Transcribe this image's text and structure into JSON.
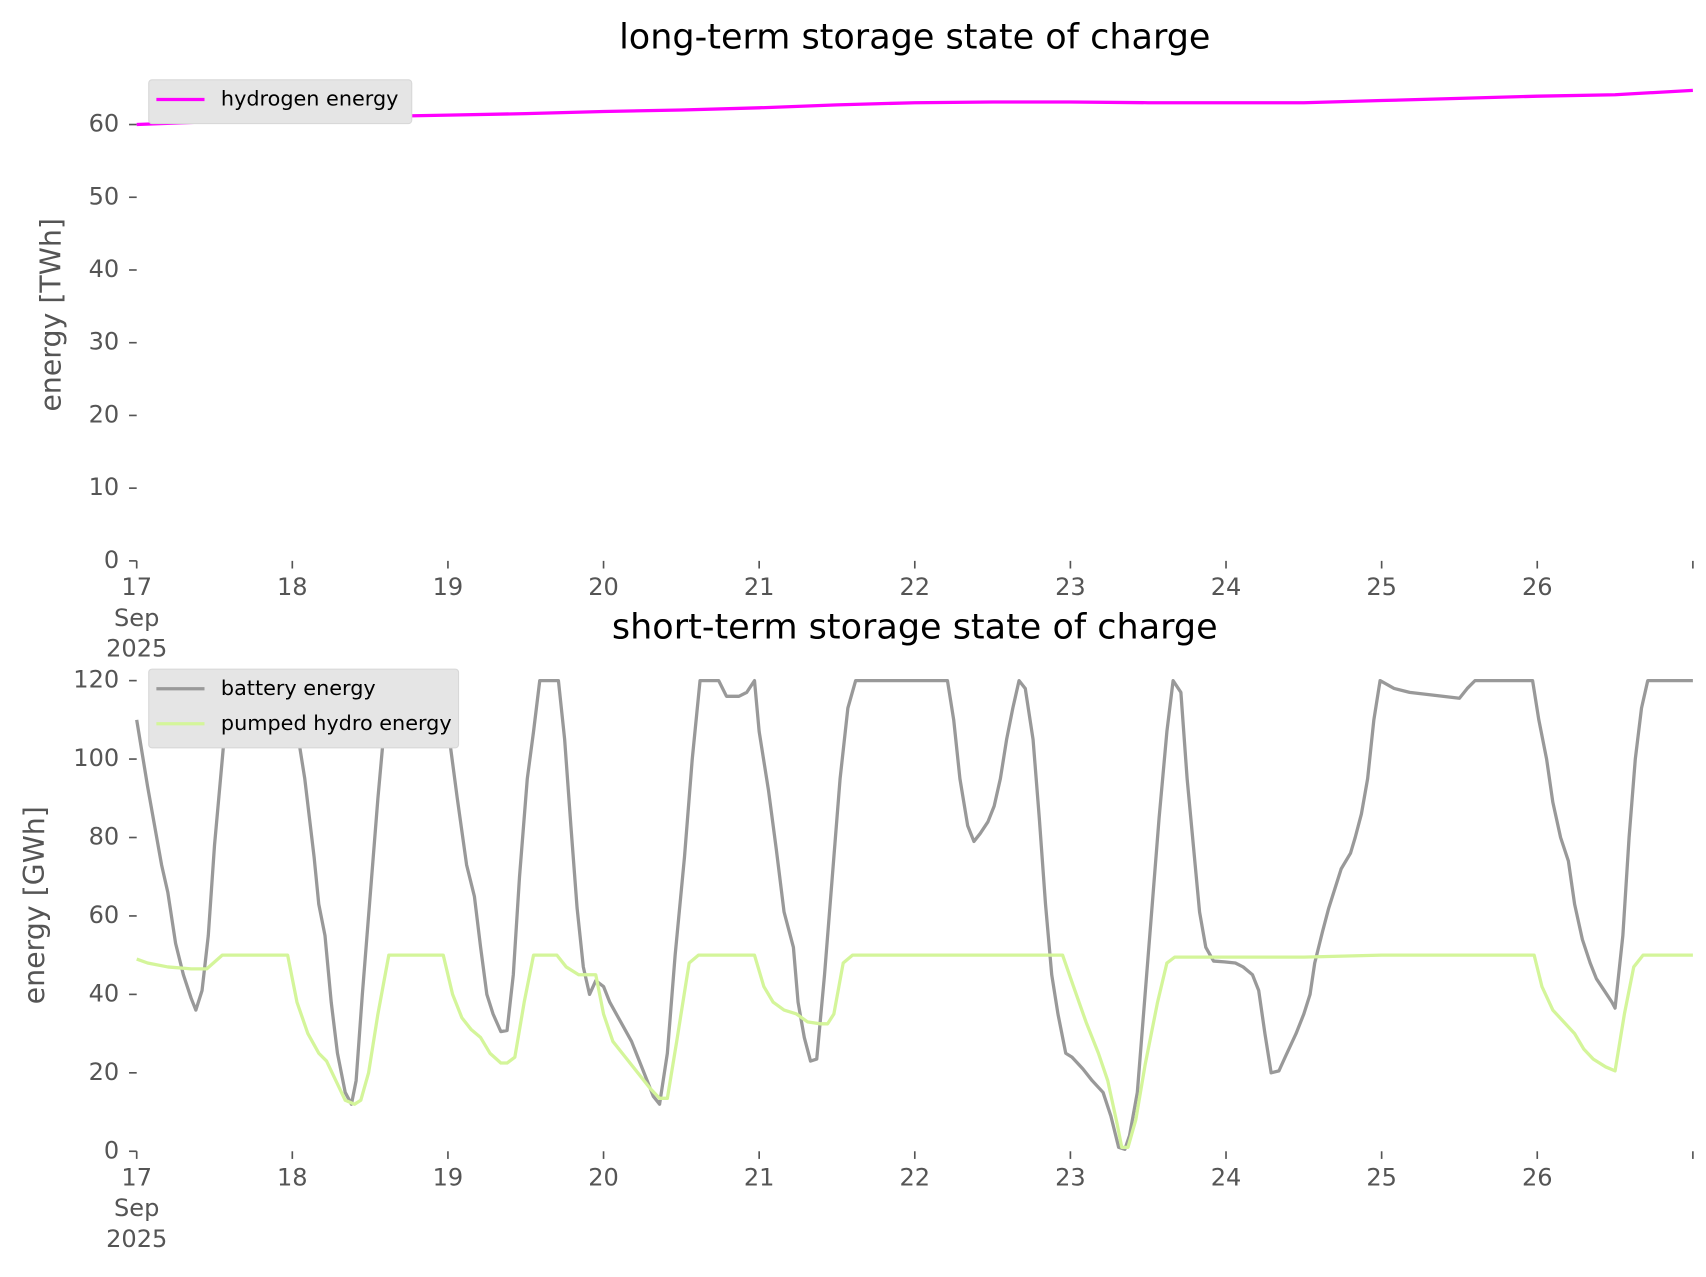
{
  "chart_data": [
    {
      "type": "line",
      "title": "long-term storage state of charge",
      "y_label": "energy [TWh]",
      "xlim": [
        17,
        27
      ],
      "xticks": [
        {
          "value": 17,
          "label": "17\nSep\n2025"
        },
        18,
        19,
        20,
        21,
        22,
        23,
        24,
        25,
        26
      ],
      "ylim": [
        0,
        66
      ],
      "yticks": [
        0,
        10,
        20,
        30,
        40,
        50,
        60
      ],
      "legend": "upper left",
      "series": [
        {
          "name": "hydrogen energy",
          "color": "#ff00ff",
          "x": [
            17,
            17.5,
            18,
            18.5,
            19,
            19.5,
            20,
            20.5,
            21,
            21.5,
            22,
            22.5,
            23,
            23.5,
            24,
            24.5,
            25,
            25.5,
            26,
            26.5,
            27
          ],
          "values": [
            60.0,
            60.4,
            60.8,
            61.1,
            61.3,
            61.5,
            61.8,
            62.0,
            62.3,
            62.7,
            63.0,
            63.1,
            63.1,
            63.0,
            63.0,
            63.0,
            63.3,
            63.6,
            63.9,
            64.1,
            64.7
          ]
        }
      ]
    },
    {
      "type": "line",
      "title": "short-term storage state of charge",
      "y_label": "energy [GWh]",
      "xlim": [
        17,
        27
      ],
      "xticks": [
        {
          "value": 17,
          "label": "17\nSep\n2025"
        },
        18,
        19,
        20,
        21,
        22,
        23,
        24,
        25,
        26
      ],
      "ylim": [
        0,
        126
      ],
      "yticks": [
        0,
        20,
        40,
        60,
        80,
        100,
        120
      ],
      "legend": "upper left",
      "series": [
        {
          "name": "battery energy",
          "color": "#999999",
          "x": [
            17,
            17.07,
            17.16,
            17.2,
            17.25,
            17.3,
            17.35,
            17.38,
            17.42,
            17.46,
            17.5,
            17.55,
            17.59,
            17.64,
            17.98,
            18.08,
            18.14,
            18.17,
            18.21,
            18.25,
            18.29,
            18.34,
            18.38,
            18.41,
            18.45,
            18.5,
            18.55,
            18.6,
            18.64,
            18.96,
            19.01,
            19.06,
            19.12,
            19.17,
            19.21,
            19.25,
            19.29,
            19.34,
            19.38,
            19.42,
            19.46,
            19.51,
            19.55,
            19.59,
            19.62,
            19.71,
            19.75,
            19.79,
            19.83,
            19.87,
            19.91,
            19.95,
            20,
            20.04,
            20.11,
            20.18,
            20.25,
            20.32,
            20.36,
            20.41,
            20.46,
            20.52,
            20.57,
            20.62,
            20.74,
            20.79,
            20.87,
            20.92,
            20.97,
            21,
            21.06,
            21.11,
            21.16,
            21.22,
            21.25,
            21.29,
            21.33,
            21.37,
            21.42,
            21.47,
            21.52,
            21.57,
            21.62,
            22.21,
            22.25,
            22.29,
            22.34,
            22.38,
            22.42,
            22.47,
            22.51,
            22.55,
            22.59,
            22.63,
            22.67,
            22.71,
            22.76,
            22.8,
            22.84,
            22.88,
            22.92,
            22.97,
            23.01,
            23.08,
            23.14,
            23.21,
            23.26,
            23.31,
            23.35,
            23.38,
            23.43,
            23.47,
            23.52,
            23.57,
            23.62,
            23.66,
            23.71,
            23.75,
            23.79,
            23.83,
            23.87,
            23.92,
            23.99,
            24.06,
            24.11,
            24.17,
            24.21,
            24.25,
            24.29,
            24.34,
            24.38,
            24.45,
            24.5,
            24.54,
            24.57,
            24.62,
            24.66,
            24.7,
            24.74,
            24.8,
            24.83,
            24.87,
            24.91,
            24.95,
            24.99,
            25.08,
            25.18,
            25.5,
            25.55,
            25.6,
            25.97,
            26.01,
            26.06,
            26.1,
            26.15,
            26.2,
            26.24,
            26.29,
            26.34,
            26.38,
            26.43,
            26.48,
            26.5,
            26.55,
            26.59,
            26.63,
            26.67,
            26.71,
            27
          ],
          "values": [
            110,
            93,
            73,
            66,
            53,
            45,
            39,
            36,
            41,
            55,
            78,
            100,
            118,
            120,
            120,
            95,
            75,
            63,
            55,
            38,
            25,
            15,
            12,
            18,
            40,
            65,
            90,
            112,
            120,
            120,
            105,
            90,
            73,
            65,
            52,
            40,
            35,
            30.5,
            30.8,
            45,
            70,
            95,
            107,
            120,
            120,
            120,
            105,
            83,
            62,
            47,
            40,
            43.5,
            42,
            38,
            33,
            28,
            21,
            14,
            12,
            25,
            50,
            75,
            100,
            120,
            120,
            116,
            116,
            117,
            120,
            107,
            92,
            77,
            61,
            52,
            38,
            29,
            23,
            23.5,
            45,
            70,
            95,
            113,
            120,
            120,
            110,
            95,
            83,
            79,
            81,
            84,
            88,
            95,
            105,
            113,
            120,
            118,
            105,
            85,
            63,
            45,
            35,
            25,
            24,
            21,
            18,
            15,
            9,
            1,
            0.5,
            4,
            15,
            35,
            60,
            85,
            107,
            120,
            117,
            95,
            78,
            61,
            52,
            48.5,
            48.3,
            48,
            47,
            45,
            41,
            30,
            20,
            20.5,
            24,
            30,
            35,
            40,
            48,
            56,
            62,
            67,
            72,
            76,
            80,
            86,
            95,
            110,
            120,
            118,
            117,
            115.5,
            118,
            120,
            120,
            110,
            100,
            89,
            80,
            74,
            63,
            54,
            48,
            44,
            41,
            38,
            36.5,
            55,
            80,
            100,
            113,
            120,
            120
          ]
        },
        {
          "name": "pumped hydro energy",
          "color": "#d4f59a",
          "x": [
            17,
            17.07,
            17.2,
            17.35,
            17.45,
            17.55,
            17.97,
            18.03,
            18.1,
            18.17,
            18.22,
            18.28,
            18.34,
            18.4,
            18.44,
            18.49,
            18.55,
            18.62,
            18.97,
            19.03,
            19.09,
            19.15,
            19.21,
            19.27,
            19.34,
            19.38,
            19.43,
            19.49,
            19.55,
            19.7,
            19.76,
            19.84,
            19.95,
            20,
            20.06,
            20.14,
            20.22,
            20.3,
            20.36,
            20.41,
            20.47,
            20.55,
            20.61,
            20.97,
            21.03,
            21.09,
            21.16,
            21.24,
            21.31,
            21.39,
            21.44,
            21.48,
            21.54,
            21.6,
            22.95,
            23.02,
            23.1,
            23.18,
            23.24,
            23.3,
            23.33,
            23.37,
            23.42,
            23.48,
            23.56,
            23.62,
            23.67,
            24,
            24.5,
            25,
            25.98,
            26.03,
            26.1,
            26.17,
            26.24,
            26.3,
            26.36,
            26.44,
            26.5,
            26.56,
            26.62,
            26.68,
            27
          ],
          "values": [
            49,
            48,
            47,
            46.5,
            46.5,
            50,
            50,
            38,
            30,
            25,
            23,
            18,
            13,
            12,
            13,
            20,
            35,
            50,
            50,
            40,
            34,
            31,
            29,
            25,
            22.5,
            22.5,
            24,
            38,
            50,
            50,
            47,
            45,
            45,
            35,
            28,
            24,
            20,
            16,
            13.5,
            13.5,
            28,
            48,
            50,
            50,
            42,
            38,
            36,
            35,
            33,
            32.5,
            32.5,
            35,
            48,
            50,
            50,
            42,
            33,
            25,
            18,
            7,
            1,
            1,
            8,
            22,
            38,
            48,
            49.5,
            49.5,
            49.5,
            50,
            50,
            42,
            36,
            33,
            30,
            26,
            23.5,
            21.5,
            20.5,
            35,
            47,
            50,
            50
          ]
        }
      ]
    }
  ]
}
